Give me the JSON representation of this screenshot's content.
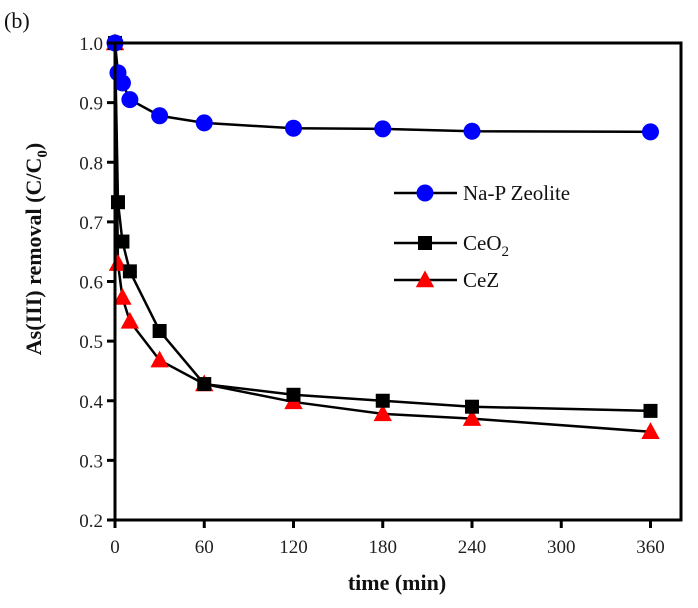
{
  "panel_label": "(b)",
  "chart_data": {
    "type": "line",
    "title": "",
    "xlabel": "time (min)",
    "ylabel": "As(III) removal (C/C0)",
    "ylabel_parts": {
      "main": "As(III) removal (C/C",
      "sub": "0",
      "close": ")"
    },
    "xlim": [
      0,
      372
    ],
    "ylim": [
      0.2,
      1.0
    ],
    "xticks": [
      0,
      60,
      120,
      180,
      240,
      300,
      360
    ],
    "xtick_labels": [
      "0",
      "60",
      "120",
      "180",
      "240",
      "300",
      "360"
    ],
    "yticks": [
      0.2,
      0.3,
      0.4,
      0.5,
      0.6,
      0.7,
      0.8,
      0.9,
      1.0
    ],
    "ytick_labels": [
      "0.2",
      "0.3",
      "0.4",
      "0.5",
      "0.6",
      "0.7",
      "0.8",
      "0.9",
      "1.0"
    ],
    "grid": false,
    "legend_position": "center-right",
    "series": [
      {
        "name": "Na-P Zeolite",
        "label_main": "Na-P Zeolite",
        "label_sub": "",
        "marker": "circle",
        "color": "#0000ff",
        "line_color": "#000000",
        "x": [
          0,
          2,
          5,
          10,
          30,
          60,
          120,
          180,
          240,
          360
        ],
        "y": [
          1.0,
          0.95,
          0.933,
          0.905,
          0.878,
          0.866,
          0.857,
          0.856,
          0.852,
          0.851
        ]
      },
      {
        "name": "CeO2",
        "label_main": "CeO",
        "label_sub": "2",
        "marker": "square",
        "color": "#000000",
        "line_color": "#000000",
        "x": [
          0,
          2,
          5,
          10,
          30,
          60,
          120,
          180,
          240,
          360
        ],
        "y": [
          1.0,
          0.733,
          0.667,
          0.617,
          0.517,
          0.428,
          0.41,
          0.4,
          0.39,
          0.383
        ]
      },
      {
        "name": "CeZ",
        "label_main": "CeZ",
        "label_sub": "",
        "marker": "triangle",
        "color": "#ff0000",
        "line_color": "#000000",
        "x": [
          0,
          2,
          5,
          10,
          30,
          60,
          120,
          180,
          240,
          360
        ],
        "y": [
          1.0,
          0.63,
          0.573,
          0.533,
          0.468,
          0.428,
          0.398,
          0.378,
          0.37,
          0.348
        ]
      }
    ]
  }
}
